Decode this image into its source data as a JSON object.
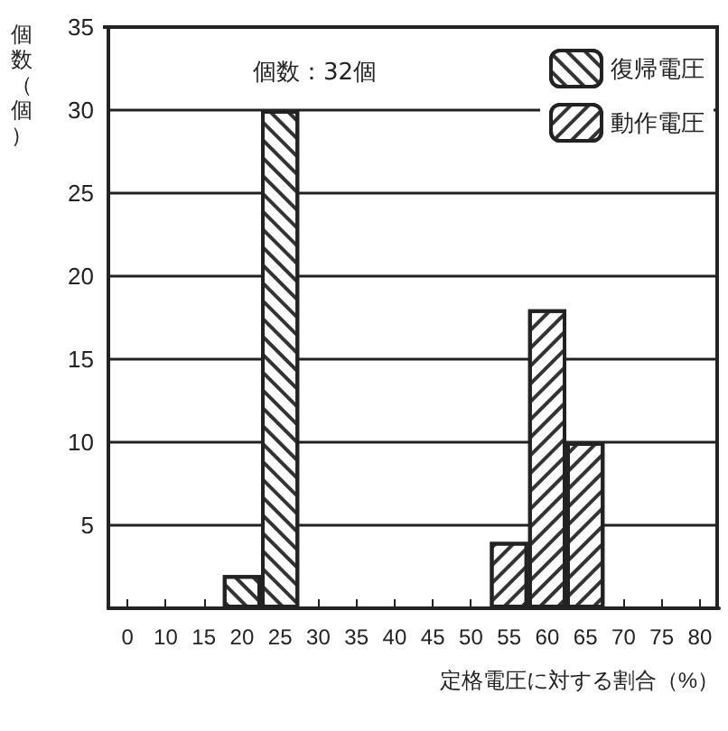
{
  "chart_data": {
    "type": "bar",
    "xlabel": "定格電圧に対する割合（%）",
    "ylabel": "個数（個）",
    "categories": [
      "0",
      "10",
      "15",
      "20",
      "25",
      "30",
      "35",
      "40",
      "45",
      "50",
      "55",
      "60",
      "65",
      "70",
      "75",
      "80"
    ],
    "series": [
      {
        "name": "復帰電圧",
        "color": "#ffffff",
        "values": [
          null,
          null,
          null,
          2,
          30,
          null,
          null,
          null,
          null,
          null,
          null,
          null,
          null,
          null,
          null,
          null
        ]
      },
      {
        "name": "動作電圧",
        "color": "#ffffff",
        "values": [
          null,
          null,
          null,
          null,
          null,
          null,
          null,
          null,
          null,
          null,
          4,
          18,
          10,
          null,
          null,
          null
        ]
      }
    ],
    "ylim": [
      0,
      35
    ],
    "yticks": [
      {
        "value": 0,
        "label": null
      },
      5,
      10,
      15,
      20,
      25,
      30,
      35
    ],
    "grid": "y",
    "legend": "top right",
    "annotations": [
      "個数：32個"
    ]
  }
}
